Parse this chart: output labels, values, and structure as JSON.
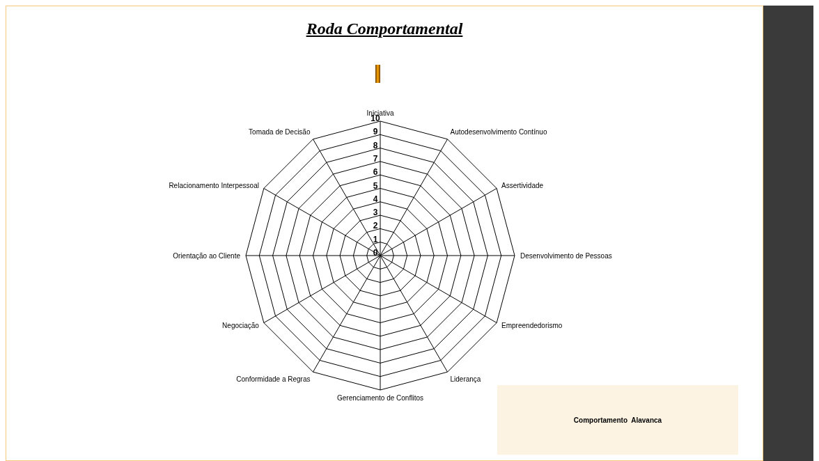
{
  "chart_data": {
    "type": "radar",
    "title": "Roda Comportamental",
    "categories": [
      "Iniciativa",
      "Autodesenvolvimento Contínuo",
      "Assertividade",
      "Desenvolvimento de Pessoas",
      "Empreendedorismo",
      "Liderança",
      "Gerenciamento de Conflitos",
      "Conformidade a Regras",
      "Negociação",
      "Orientação ao Cliente",
      "Relacionamento Interpessoal",
      "Tomada de Decisão"
    ],
    "series": [
      {
        "values": [
          null,
          null,
          null,
          null,
          null,
          null,
          null,
          null,
          null,
          null,
          null,
          null
        ]
      }
    ],
    "ylim": [
      0,
      10
    ],
    "yticks": [
      0,
      1,
      2,
      3,
      4,
      5,
      6,
      7,
      8,
      9,
      10
    ],
    "grid": true,
    "annotations": [
      "Comportamento  Alavanca"
    ]
  }
}
